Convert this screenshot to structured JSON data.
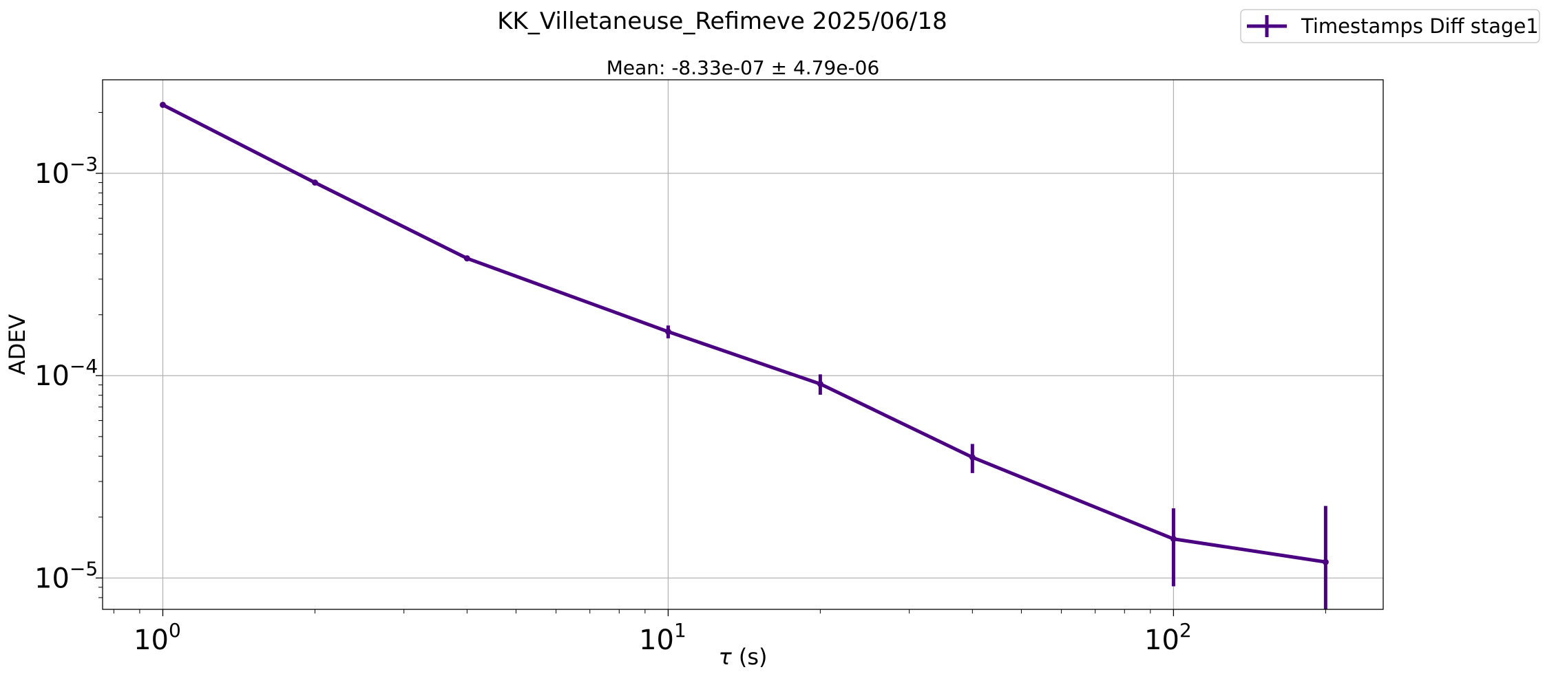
{
  "chart_data": {
    "type": "line",
    "title": "KK_Villetaneuse_Refimeve 2025/06/18",
    "subtitle": "Mean: -8.33e-07 ± 4.79e-06",
    "xlabel_symbol": "τ",
    "xlabel_unit": " (s)",
    "ylabel": "ADEV",
    "xscale": "log",
    "yscale": "log",
    "xlim": [
      0.76,
      260
    ],
    "ylim": [
      7e-06,
      0.0029
    ],
    "grid": true,
    "legend_position": "top-right",
    "x_ticks": [
      {
        "base": "10",
        "exp": "0",
        "value": 1
      },
      {
        "base": "10",
        "exp": "1",
        "value": 10
      },
      {
        "base": "10",
        "exp": "2",
        "value": 100
      }
    ],
    "y_ticks": [
      {
        "base": "10",
        "exp": "−5",
        "value": 1e-05
      },
      {
        "base": "10",
        "exp": "−4",
        "value": 0.0001
      },
      {
        "base": "10",
        "exp": "−3",
        "value": 0.001
      }
    ],
    "series": [
      {
        "name": "Timestamps Diff stage1",
        "color": "#4b0082",
        "x": [
          1,
          2,
          4,
          10,
          20,
          40,
          100,
          200
        ],
        "y": [
          0.00218,
          0.0009,
          0.00038,
          0.000165,
          9.1e-05,
          3.95e-05,
          1.56e-05,
          1.2e-05
        ],
        "yerr": [
          2e-05,
          1e-05,
          1e-05,
          1.2e-05,
          1.05e-05,
          6.5e-06,
          6.5e-06,
          1.07e-05
        ]
      }
    ]
  }
}
